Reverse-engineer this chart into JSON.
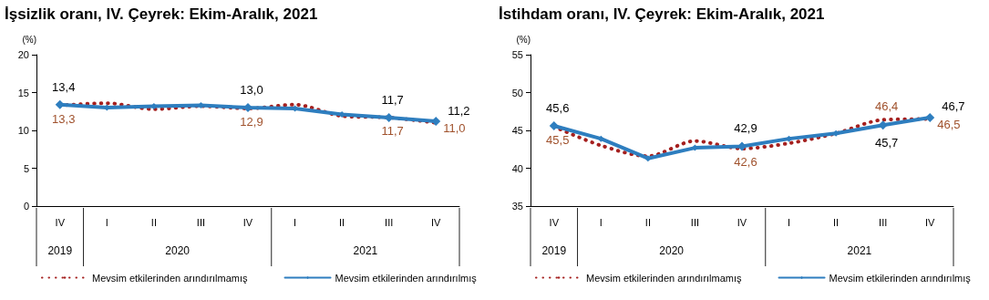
{
  "chart_data": [
    {
      "type": "line",
      "title": "İşsizlik oranı, IV. Çeyrek: Ekim-Aralık, 2021",
      "ylabel": "(%)",
      "categories": [
        "IV",
        "I",
        "II",
        "III",
        "IV",
        "I",
        "II",
        "III",
        "IV"
      ],
      "annotations": [
        "2019",
        "2020",
        "2021"
      ],
      "ylim": [
        0,
        20
      ],
      "yticks": [
        0,
        5,
        10,
        15,
        20
      ],
      "grid": false,
      "legend": "bottom",
      "series": [
        {
          "name": "Mevsim etkilerinden arındırılmamış",
          "color": "#a5201f",
          "line_style": "dotted",
          "values": [
            13.3,
            13.6,
            12.8,
            13.2,
            12.9,
            13.4,
            11.9,
            11.7,
            11.0
          ],
          "value_labels": [
            "13,3",
            null,
            null,
            null,
            "12,9",
            null,
            null,
            "11,7",
            "11,0"
          ]
        },
        {
          "name": "Mevsim etkilerinden arındırılmış",
          "color": "#2e7ebf",
          "line_style": "solid",
          "marker": "diamond",
          "values": [
            13.4,
            13.0,
            13.2,
            13.3,
            13.0,
            12.9,
            12.1,
            11.7,
            11.2
          ],
          "value_labels": [
            "13,4",
            null,
            null,
            null,
            "13,0",
            null,
            null,
            "11,7",
            "11,2"
          ]
        }
      ]
    },
    {
      "type": "line",
      "title": "İstihdam oranı, IV. Çeyrek: Ekim-Aralık, 2021",
      "ylabel": "(%)",
      "categories": [
        "IV",
        "I",
        "II",
        "III",
        "IV",
        "I",
        "II",
        "III",
        "IV"
      ],
      "annotations": [
        "2019",
        "2020",
        "2021"
      ],
      "ylim": [
        35,
        55
      ],
      "yticks": [
        35,
        40,
        45,
        50,
        55
      ],
      "grid": false,
      "legend": "bottom",
      "series": [
        {
          "name": "Mevsim etkilerinden arındırılmamış",
          "color": "#a5201f",
          "line_style": "dotted",
          "values": [
            45.5,
            43.0,
            41.6,
            43.6,
            42.6,
            43.3,
            44.6,
            46.4,
            46.5
          ],
          "value_labels": [
            "45,5",
            null,
            null,
            null,
            "42,6",
            null,
            null,
            "46,4",
            "46,5"
          ]
        },
        {
          "name": "Mevsim etkilerinden arındırılmış",
          "color": "#2e7ebf",
          "line_style": "solid",
          "marker": "diamond",
          "values": [
            45.6,
            43.9,
            41.3,
            42.7,
            42.9,
            43.9,
            44.6,
            45.7,
            46.7
          ],
          "value_labels": [
            "45,6",
            null,
            null,
            null,
            "42,9",
            null,
            null,
            "45,7",
            "46,7"
          ]
        }
      ]
    }
  ]
}
